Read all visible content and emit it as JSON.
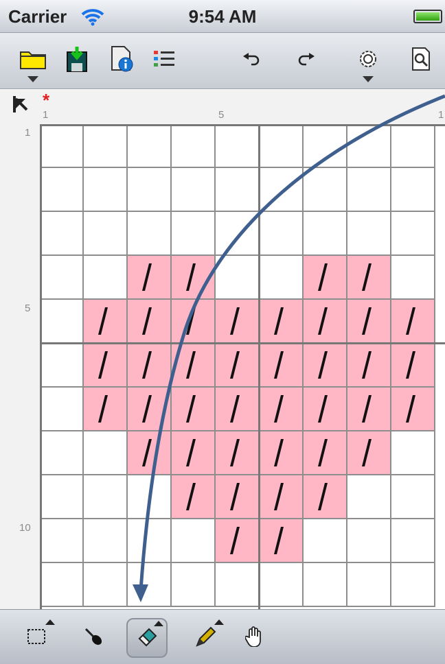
{
  "status_bar": {
    "carrier": "Carrier",
    "time": "9:54 AM"
  },
  "toolbar": {
    "buttons": [
      {
        "icon": "folder-open-icon",
        "has_menu": true
      },
      {
        "icon": "save-download-icon",
        "has_menu": false
      },
      {
        "icon": "document-info-icon",
        "has_menu": false
      },
      {
        "icon": "color-list-icon",
        "has_menu": false
      },
      {
        "icon": "undo-icon",
        "has_menu": false
      },
      {
        "icon": "redo-icon",
        "has_menu": false
      },
      {
        "icon": "settings-gear-icon",
        "has_menu": true
      },
      {
        "icon": "preview-zoom-icon",
        "has_menu": false
      }
    ]
  },
  "canvas": {
    "modified_marker": "*",
    "ruler_top_labels": [
      "1",
      "5",
      "1"
    ],
    "ruler_left_labels": [
      "1",
      "5",
      "10"
    ],
    "stitch_symbol": "/",
    "colors": {
      "fabric": "#ffffff",
      "stitch_fill": "#ffb7c5",
      "grid_line": "#8d8d8d",
      "major_grid_line": "#777777",
      "annotation_arrow": "#3f5f8f"
    },
    "rows": [
      [
        0,
        0,
        0,
        0,
        0,
        0,
        0,
        0,
        0
      ],
      [
        0,
        0,
        0,
        0,
        0,
        0,
        0,
        0,
        0
      ],
      [
        0,
        0,
        0,
        0,
        0,
        0,
        0,
        0,
        0
      ],
      [
        0,
        0,
        1,
        1,
        0,
        0,
        1,
        1,
        0
      ],
      [
        0,
        1,
        1,
        1,
        1,
        1,
        1,
        1,
        1
      ],
      [
        0,
        1,
        1,
        1,
        1,
        1,
        1,
        1,
        1
      ],
      [
        0,
        1,
        1,
        1,
        1,
        1,
        1,
        1,
        1
      ],
      [
        0,
        0,
        1,
        1,
        1,
        1,
        1,
        1,
        0
      ],
      [
        0,
        0,
        0,
        1,
        1,
        1,
        1,
        0,
        0
      ],
      [
        0,
        0,
        0,
        0,
        1,
        1,
        0,
        0,
        0
      ],
      [
        0,
        0,
        0,
        0,
        0,
        0,
        0,
        0,
        0
      ]
    ]
  },
  "bottom_toolbar": {
    "tools": [
      {
        "icon": "selection-rectangle-icon",
        "has_submenu": true,
        "selected": false
      },
      {
        "icon": "eyedropper-icon",
        "has_submenu": false,
        "selected": false
      },
      {
        "icon": "eraser-icon",
        "has_submenu": true,
        "selected": true
      },
      {
        "icon": "pencil-icon",
        "has_submenu": true,
        "selected": false
      },
      {
        "icon": "hand-pan-icon",
        "has_submenu": false,
        "selected": false
      }
    ]
  }
}
